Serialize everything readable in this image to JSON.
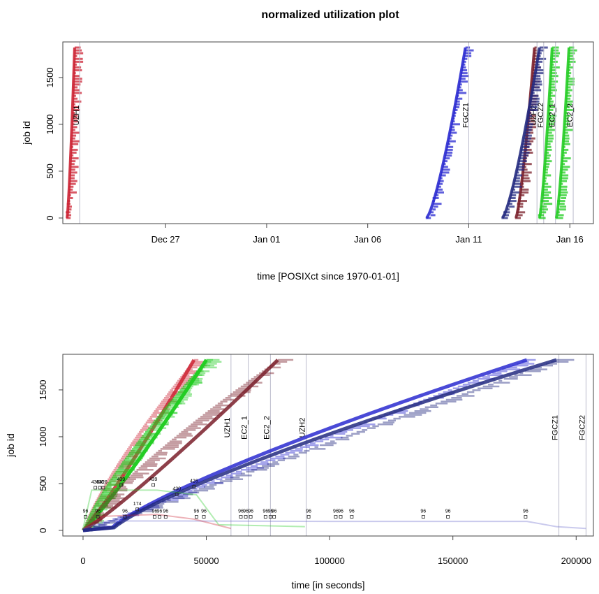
{
  "chart_data": [
    {
      "type": "scatter",
      "title": "normalized utilization plot",
      "xlabel": "time [POSIXct since 1970-01-01]",
      "ylabel": "job id",
      "x_tick_labels": [
        "Dec 27",
        "Jan 01",
        "Jan 06",
        "Jan 11",
        "Jan 16"
      ],
      "x_tick_dates": [
        "2015-12-27",
        "2016-01-01",
        "2016-01-06",
        "2016-01-11",
        "2016-01-16"
      ],
      "xlim": [
        "2015-12-21T22:00",
        "2016-01-17T04:00"
      ],
      "ylim": [
        -60,
        1880
      ],
      "y_ticks": [
        0,
        500,
        1000,
        1500
      ],
      "series": [
        {
          "name": "UZH1",
          "color": "#cc2233",
          "start": "2015-12-22T03:00",
          "end": "2015-12-22T12:00",
          "finish_line": "2015-12-22T18:00",
          "jobs": 1820
        },
        {
          "name": "FGCZ1",
          "color": "#2a2ad0",
          "start": "2016-01-08T22:00",
          "end": "2016-01-10T20:00",
          "finish_line": "2016-01-11T00:00",
          "jobs": 1820
        },
        {
          "name": "UZH2",
          "color": "#7a1f2a",
          "start": "2016-01-13T08:00",
          "end": "2016-01-14T06:00",
          "finish_line": "2016-01-14T09:00",
          "jobs": 1820
        },
        {
          "name": "FGCZ2",
          "color": "#232a80",
          "start": "2016-01-12T16:00",
          "end": "2016-01-14T12:00",
          "finish_line": "2016-01-14T17:00",
          "jobs": 1820
        },
        {
          "name": "EC2_1",
          "color": "#22cc22",
          "start": "2016-01-14T12:00",
          "end": "2016-01-15T03:00",
          "finish_line": "2016-01-15T07:00",
          "jobs": 1820
        },
        {
          "name": "EC2_2",
          "color": "#22cc22",
          "start": "2016-01-15T08:00",
          "end": "2016-01-15T23:00",
          "finish_line": "2016-01-16T04:00",
          "jobs": 1820
        }
      ]
    },
    {
      "type": "scatter",
      "xlabel": "time [in seconds]",
      "ylabel": "job id",
      "x_ticks": [
        0,
        50000,
        100000,
        150000,
        200000
      ],
      "xlim": [
        -8200,
        207000
      ],
      "ylim": [
        -60,
        1880
      ],
      "y_ticks": [
        0,
        500,
        1000,
        1500
      ],
      "series": [
        {
          "name": "UZH1",
          "color": "#cc2233",
          "end_x": 45000,
          "finish_line": 60000
        },
        {
          "name": "EC2_1",
          "color": "#22cc22",
          "end_x": 50000,
          "finish_line": 67000
        },
        {
          "name": "EC2_2",
          "color": "#22cc22",
          "end_x": 50000,
          "finish_line": 76000
        },
        {
          "name": "UZH2",
          "color": "#7a1f2a",
          "end_x": 79000,
          "finish_line": 90500
        },
        {
          "name": "FGCZ1",
          "color": "#2a2ad0",
          "end_x": 180000,
          "finish_line": 193000
        },
        {
          "name": "FGCZ2",
          "color": "#232a80",
          "end_x": 192000,
          "finish_line": 204000
        }
      ],
      "annotations": [
        {
          "text": "96",
          "x": 1000,
          "y": 190
        },
        {
          "text": "96",
          "x": 6000,
          "y": 190
        },
        {
          "text": "96",
          "x": 17000,
          "y": 190
        },
        {
          "text": "439",
          "x": 5000,
          "y": 500
        },
        {
          "text": "436",
          "x": 6800,
          "y": 500
        },
        {
          "text": "426",
          "x": 8200,
          "y": 500
        },
        {
          "text": "439",
          "x": 15400,
          "y": 530
        },
        {
          "text": "174",
          "x": 22000,
          "y": 270
        },
        {
          "text": "439",
          "x": 28500,
          "y": 530
        },
        {
          "text": "430",
          "x": 38000,
          "y": 430
        },
        {
          "text": "426",
          "x": 45000,
          "y": 510
        },
        {
          "text": "96",
          "x": 29000,
          "y": 190
        },
        {
          "text": "96",
          "x": 31000,
          "y": 190
        },
        {
          "text": "96",
          "x": 33500,
          "y": 190
        },
        {
          "text": "96",
          "x": 46000,
          "y": 190
        },
        {
          "text": "96",
          "x": 49000,
          "y": 190
        },
        {
          "text": "96",
          "x": 64000,
          "y": 190
        },
        {
          "text": "96",
          "x": 66000,
          "y": 190
        },
        {
          "text": "96",
          "x": 68000,
          "y": 190
        },
        {
          "text": "96",
          "x": 74000,
          "y": 190
        },
        {
          "text": "96",
          "x": 76000,
          "y": 190
        },
        {
          "text": "96",
          "x": 77500,
          "y": 190
        },
        {
          "text": "96",
          "x": 91500,
          "y": 190
        },
        {
          "text": "96",
          "x": 102500,
          "y": 190
        },
        {
          "text": "96",
          "x": 104500,
          "y": 190
        },
        {
          "text": "96",
          "x": 109000,
          "y": 190
        },
        {
          "text": "96",
          "x": 138000,
          "y": 190
        },
        {
          "text": "96",
          "x": 148000,
          "y": 190
        },
        {
          "text": "96",
          "x": 179500,
          "y": 190
        }
      ]
    }
  ]
}
